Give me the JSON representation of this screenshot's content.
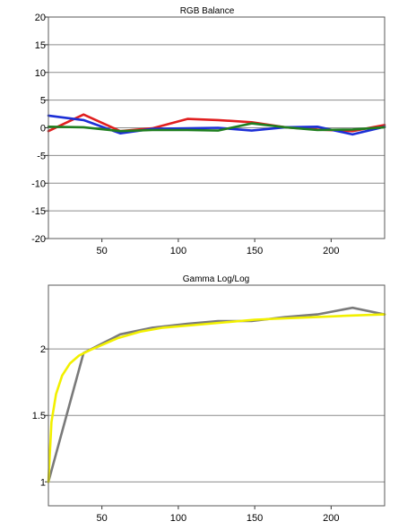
{
  "chart_data": [
    {
      "type": "line",
      "title": "RGB Balance",
      "xlim": [
        15,
        235
      ],
      "ylim": [
        -20,
        20
      ],
      "xticks": [
        50,
        100,
        150,
        200
      ],
      "yticks": [
        -20,
        -15,
        -10,
        -5,
        0,
        5,
        10,
        15,
        20
      ],
      "grid": true,
      "x": [
        15,
        38,
        62,
        83,
        106,
        126,
        148,
        170,
        191,
        214,
        235
      ],
      "series": [
        {
          "color": "#e01f1f",
          "values": [
            -0.6,
            2.4,
            -0.6,
            -0.1,
            1.6,
            1.4,
            1.0,
            0.1,
            -0.3,
            -0.6,
            0.5
          ]
        },
        {
          "color": "#1c2fd6",
          "values": [
            2.2,
            1.4,
            -1.0,
            -0.2,
            -0.1,
            0.0,
            -0.5,
            0.1,
            0.2,
            -1.2,
            0.2
          ]
        },
        {
          "color": "#1f7f1f",
          "values": [
            0.2,
            0.1,
            -0.6,
            -0.4,
            -0.4,
            -0.5,
            0.8,
            0.1,
            -0.4,
            -0.3,
            0.1
          ]
        }
      ]
    },
    {
      "type": "line",
      "title": "Gamma Log/Log",
      "xlim": [
        15,
        235
      ],
      "ylim": [
        0.82,
        2.48
      ],
      "xticks": [
        50,
        100,
        150,
        200
      ],
      "yticks": [
        1,
        1.5,
        2
      ],
      "grid": true,
      "series": [
        {
          "color": "#7a7a7a",
          "x": [
            15,
            38,
            62,
            83,
            106,
            126,
            148,
            170,
            191,
            214,
            235
          ],
          "values": [
            1.0,
            1.97,
            2.11,
            2.16,
            2.19,
            2.21,
            2.21,
            2.24,
            2.26,
            2.31,
            2.26
          ]
        },
        {
          "color": "#f2f000",
          "x": [
            15,
            17,
            20,
            24,
            29,
            35,
            42,
            50,
            60,
            75,
            90,
            110,
            130,
            150,
            170,
            190,
            210,
            235
          ],
          "values": [
            1.0,
            1.45,
            1.66,
            1.8,
            1.89,
            1.95,
            1.99,
            2.03,
            2.08,
            2.13,
            2.16,
            2.18,
            2.2,
            2.22,
            2.23,
            2.24,
            2.25,
            2.26
          ]
        }
      ]
    }
  ]
}
